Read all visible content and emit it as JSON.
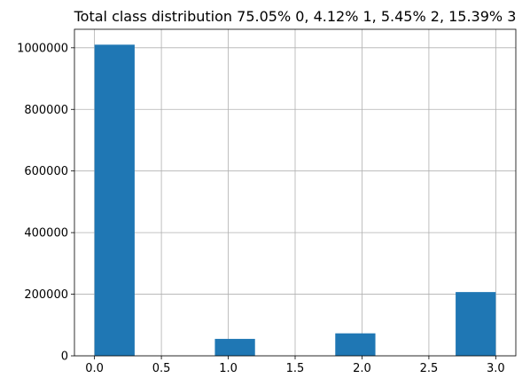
{
  "chart_data": {
    "type": "bar",
    "title": "Total class distribution 75.05% 0, 4.12% 1, 5.45% 2, 15.39% 3",
    "xlabel": "",
    "ylabel": "",
    "bins": [
      {
        "x0": 0.0,
        "x1": 0.3,
        "value": 1010000
      },
      {
        "x0": 0.3,
        "x1": 0.6,
        "value": 0
      },
      {
        "x0": 0.6,
        "x1": 0.9,
        "value": 0
      },
      {
        "x0": 0.9,
        "x1": 1.2,
        "value": 55000
      },
      {
        "x0": 1.2,
        "x1": 1.5,
        "value": 0
      },
      {
        "x0": 1.5,
        "x1": 1.8,
        "value": 0
      },
      {
        "x0": 1.8,
        "x1": 2.1,
        "value": 73000
      },
      {
        "x0": 2.1,
        "x1": 2.4,
        "value": 0
      },
      {
        "x0": 2.4,
        "x1": 2.7,
        "value": 0
      },
      {
        "x0": 2.7,
        "x1": 3.0,
        "value": 207000
      }
    ],
    "xlim": [
      -0.15,
      3.15
    ],
    "ylim": [
      0,
      1060000
    ],
    "xticks": [
      0.0,
      0.5,
      1.0,
      1.5,
      2.0,
      2.5,
      3.0
    ],
    "xtick_labels": [
      "0.0",
      "0.5",
      "1.0",
      "1.5",
      "2.0",
      "2.5",
      "3.0"
    ],
    "yticks": [
      0,
      200000,
      400000,
      600000,
      800000,
      1000000
    ],
    "ytick_labels": [
      "0",
      "200000",
      "400000",
      "600000",
      "800000",
      "1000000"
    ],
    "grid": true,
    "bar_color": "#1f77b4",
    "grid_color": "#b0b0b0"
  }
}
